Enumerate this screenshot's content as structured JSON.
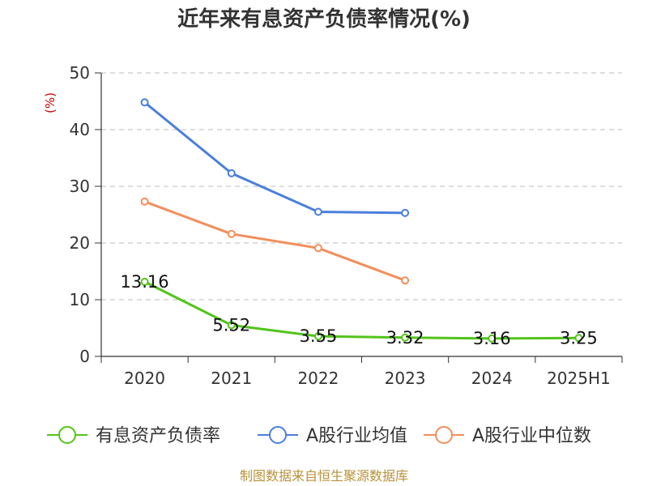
{
  "chart_data": {
    "type": "line",
    "title": "近年来有息资产负债率情况(%)",
    "unit_label": "(%)",
    "categories": [
      "2020",
      "2021",
      "2022",
      "2023",
      "2024",
      "2025H1"
    ],
    "ylim": [
      0,
      50
    ],
    "yticks": [
      0,
      10,
      20,
      30,
      40,
      50
    ],
    "grid": true,
    "legend_position": "bottom",
    "series": [
      {
        "name": "有息资产负债率",
        "color": "#52c41a",
        "values": [
          13.16,
          5.52,
          3.55,
          3.32,
          3.16,
          3.25
        ],
        "labels": [
          "13.16",
          "5.52",
          "3.55",
          "3.32",
          "3.16",
          "3.25"
        ]
      },
      {
        "name": "A股行业均值",
        "color": "#4a7fdc",
        "values": [
          44.8,
          32.3,
          25.5,
          25.3,
          null,
          null
        ]
      },
      {
        "name": "A股行业中位数",
        "color": "#f28e5c",
        "values": [
          27.3,
          21.6,
          19.1,
          13.4,
          null,
          null
        ]
      }
    ]
  },
  "footer": {
    "source": "制图数据来自恒生聚源数据库"
  }
}
